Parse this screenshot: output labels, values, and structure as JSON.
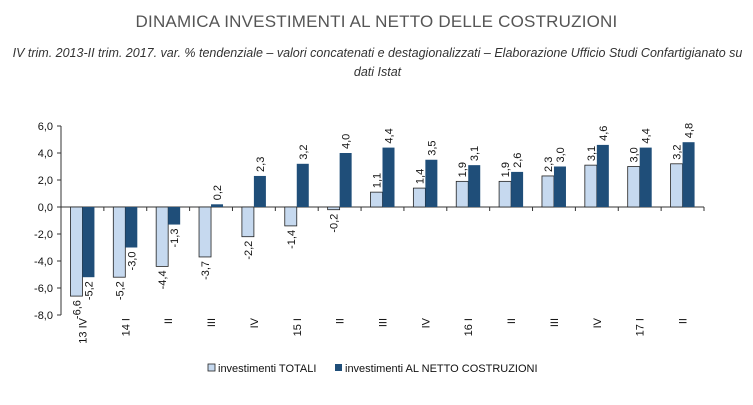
{
  "chart_data": {
    "type": "bar",
    "title": "DINAMICA INVESTIMENTI AL NETTO DELLE COSTRUZIONI",
    "subtitle": "IV trim. 2013-II trim. 2017. var. %   tendenziale –   valori concatenati e destagionalizzati – Elaborazione Ufficio Studi Confartigianato su dati Istat",
    "categories": [
      "13 IV",
      "14 I",
      "II",
      "III",
      "IV",
      "15 I",
      "II",
      "III",
      "IV",
      "16 I",
      "II",
      "III",
      "IV",
      "17 I",
      "II"
    ],
    "series": [
      {
        "name": "investimenti TOTALI",
        "color": "#c6d9ef",
        "values": [
          -6.6,
          -5.2,
          -4.4,
          -3.7,
          -2.2,
          -1.4,
          -0.2,
          1.1,
          1.4,
          1.9,
          1.9,
          2.3,
          3.1,
          3.0,
          3.2
        ]
      },
      {
        "name": "investimenti AL NETTO COSTRUZIONI",
        "color": "#1f4e79",
        "values": [
          -5.2,
          -3.0,
          -1.3,
          0.2,
          2.3,
          3.2,
          4.0,
          4.4,
          3.5,
          3.1,
          2.6,
          3.0,
          4.6,
          4.4,
          4.8
        ]
      }
    ],
    "ylim": [
      -8,
      6
    ],
    "yticks": [
      "-8,0",
      "-6,0",
      "-4,0",
      "-2,0",
      "0,0",
      "2,0",
      "4,0",
      "6,0"
    ],
    "grid": false,
    "legend": "bottom",
    "xlabel": "",
    "ylabel": ""
  }
}
